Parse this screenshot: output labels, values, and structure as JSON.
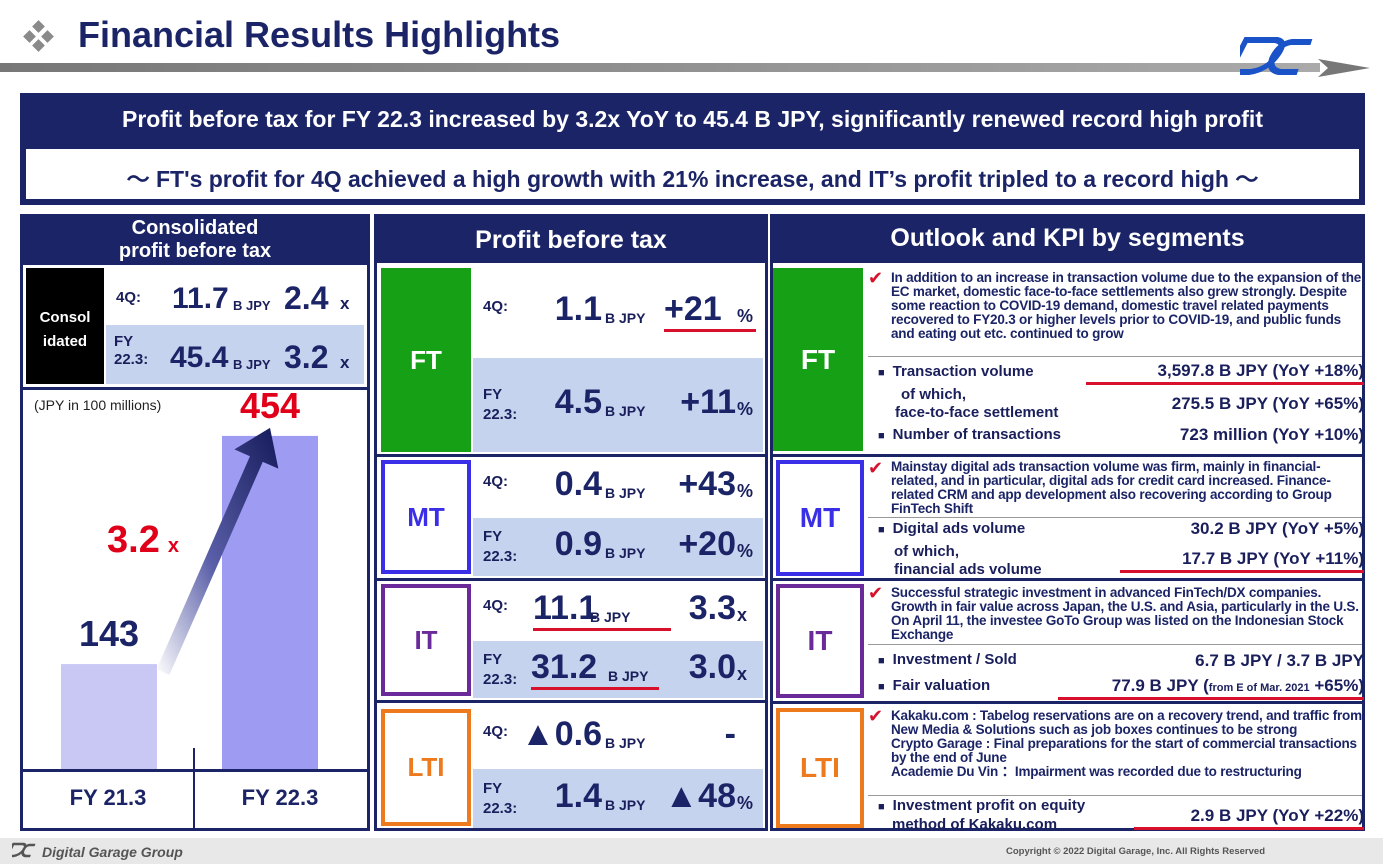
{
  "header": {
    "title": "Financial Results Highlights"
  },
  "banner": {
    "headline": "Profit before tax for FY 22.3 increased by 3.2x YoY to 45.4 B JPY, significantly renewed record high profit",
    "subline": "～ FT's profit for 4Q achieved a high growth with 21% increase, and IT’s profit tripled to a record high ～"
  },
  "consolidated": {
    "title_line1": "Consolidated",
    "title_line2": "profit before tax",
    "label_line1": "Consol",
    "label_line2": "idated",
    "q4_label": "4Q:",
    "q4_value": "11.7",
    "q4_unit": "B JPY",
    "q4_growth": "2.4",
    "q4_growth_unit": "x",
    "fy_label_line1": "FY",
    "fy_label_line2": "22.3:",
    "fy_value": "45.4",
    "fy_unit": "B JPY",
    "fy_growth": "3.2",
    "fy_growth_unit": "x"
  },
  "chart_data": {
    "type": "bar",
    "unit_note": "(JPY in 100 millions)",
    "categories": [
      "FY 21.3",
      "FY 22.3"
    ],
    "values": [
      143,
      454
    ],
    "value_labels": [
      "143",
      "454"
    ],
    "growth_label": "3.2",
    "growth_unit": "x",
    "ylim": [
      0,
      500
    ],
    "colors": [
      "#c9c8f5",
      "#9e9cf2"
    ]
  },
  "profit_section": {
    "title": "Profit before tax",
    "q4_label": "4Q:",
    "fy_label_line1": "FY",
    "fy_label_line2": "22.3:",
    "unit": "B JPY",
    "rows": [
      {
        "seg": "FT",
        "q4_value": "1.1",
        "q4_growth": "+21",
        "q4_growth_unit": "%",
        "fy_value": "4.5",
        "fy_growth": "+11",
        "fy_growth_unit": "%"
      },
      {
        "seg": "MT",
        "q4_value": "0.4",
        "q4_growth": "+43",
        "q4_growth_unit": "%",
        "fy_value": "0.9",
        "fy_growth": "+20",
        "fy_growth_unit": "%"
      },
      {
        "seg": "IT",
        "q4_value": "11.1",
        "q4_growth": "3.3",
        "q4_growth_unit": "x",
        "fy_value": "31.2",
        "fy_growth": "3.0",
        "fy_growth_unit": "x"
      },
      {
        "seg": "LTI",
        "q4_value": "▲0.6",
        "q4_growth": "-",
        "q4_growth_unit": "",
        "fy_value": "1.4",
        "fy_growth": "▲48",
        "fy_growth_unit": "%"
      }
    ]
  },
  "outlook": {
    "title": "Outlook and KPI by segments",
    "ft": {
      "seg": "FT",
      "desc": "In addition to an increase in transaction volume due to the expansion of the EC market, domestic face-to-face settlements also grew strongly. Despite some reaction to COVID-19 demand, domestic travel related payments recovered to FY20.3 or higher levels prior to COVID-19, and public funds and eating out etc. continued to grow",
      "k1_label": "Transaction volume",
      "k1_value": "3,597.8 B JPY (YoY +18%)",
      "k2_label_line1": "of which,",
      "k2_label_line2": "face-to-face settlement",
      "k2_value": "275.5 B JPY (YoY +65%)",
      "k3_label": "Number of transactions",
      "k3_value": "723 million (YoY +10%)"
    },
    "mt": {
      "seg": "MT",
      "desc": "Mainstay digital ads transaction volume was firm, mainly in financial-related, and in particular, digital ads for credit card increased. Finance-related CRM and app development also recovering according to Group FinTech Shift",
      "k1_label": "Digital ads volume",
      "k1_value": "30.2 B JPY (YoY +5%)",
      "k2_label_line1": "of which,",
      "k2_label_line2": "financial ads volume",
      "k2_value": "17.7 B JPY (YoY +11%)"
    },
    "it": {
      "seg": "IT",
      "desc": "Successful strategic investment in advanced FinTech/DX companies. Growth in fair value across Japan, the U.S. and Asia, particularly in the U.S. On April 11, the investee GoTo Group was listed on the Indonesian Stock Exchange",
      "k1_label": "Investment / Sold",
      "k1_value": "6.7 B JPY / 3.7 B JPY",
      "k2_label": "Fair valuation",
      "k2_value_main": "77.9 B JPY (",
      "k2_value_small": "from E of Mar. 2021",
      "k2_value_end": " +65%)"
    },
    "lti": {
      "seg": "LTI",
      "desc1": "Kakaku.com : Tabelog reservations are on a recovery trend, and traffic from New Media & Solutions such as job boxes continues to be strong",
      "desc2": "Crypto Garage : Final preparations for the start of commercial transactions by the end of June",
      "desc3": "Academie Du Vin ：Impairment was recorded due to restructuring",
      "k1_label_line1": "Investment profit on equity",
      "k1_label_line2": "method of Kakaku.com",
      "k1_value": "2.9 B JPY (YoY +22%)"
    }
  },
  "footer": {
    "company": "Digital Garage Group",
    "copyright": "Copyright © 2022 Digital Garage, Inc. All Rights Reserved"
  },
  "colors": {
    "navy": "#1b2466",
    "ft": "#16a016",
    "mt": "#3a2ee6",
    "it": "#6a2a9a",
    "lti": "#ee7a1e",
    "red": "#e0001a"
  }
}
